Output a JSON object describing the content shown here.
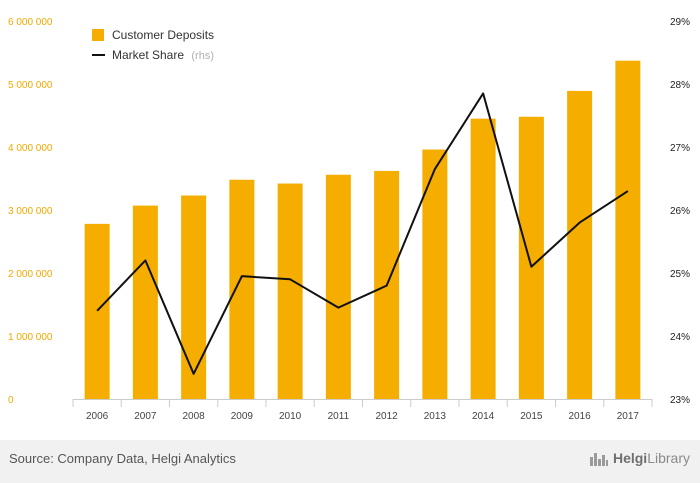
{
  "chart_data": {
    "type": "bar",
    "categories": [
      "2006",
      "2007",
      "2008",
      "2009",
      "2010",
      "2011",
      "2012",
      "2013",
      "2014",
      "2015",
      "2016",
      "2017"
    ],
    "series": [
      {
        "name": "Customer Deposits",
        "type": "bar",
        "axis": "left",
        "color": "#f5ad00",
        "values": [
          2780000,
          3070000,
          3230000,
          3480000,
          3420000,
          3560000,
          3620000,
          3960000,
          4450000,
          4480000,
          4890000,
          5370000
        ]
      },
      {
        "name": "Market Share",
        "name_suffix": "(rhs)",
        "type": "line",
        "axis": "right",
        "color": "#111111",
        "values": [
          24.4,
          25.2,
          23.4,
          24.95,
          24.9,
          24.45,
          24.8,
          26.65,
          27.85,
          25.1,
          25.8,
          26.3
        ]
      }
    ],
    "y_left": {
      "min": 0,
      "max": 6000000,
      "ticks": [
        0,
        1000000,
        2000000,
        3000000,
        4000000,
        5000000,
        6000000
      ],
      "tick_labels": [
        "0",
        "1 000 000",
        "2 000 000",
        "3 000 000",
        "4 000 000",
        "5 000 000",
        "6 000 000"
      ]
    },
    "y_right": {
      "min": 23,
      "max": 29,
      "ticks": [
        23,
        24,
        25,
        26,
        27,
        28,
        29
      ],
      "tick_labels": [
        "23%",
        "24%",
        "25%",
        "26%",
        "27%",
        "28%",
        "29%"
      ]
    },
    "legend_position": "top-left",
    "grid": false
  },
  "footer": {
    "source": "Source: Company Data, Helgi Analytics",
    "brand_prefix": "Helgi",
    "brand_suffix": "Library"
  },
  "icons": {
    "brand": "city-skyline-icon"
  }
}
